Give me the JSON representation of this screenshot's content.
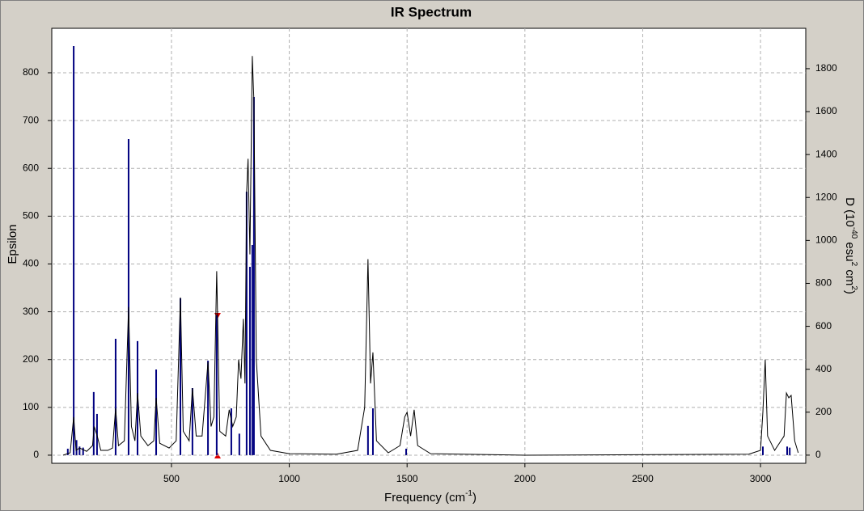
{
  "chart_data": {
    "type": "line",
    "title": "IR Spectrum",
    "xlabel": [
      "Frequency (cm",
      "-1",
      ")"
    ],
    "ylabel": "Epsilon",
    "y2label": [
      "D (10",
      "-40",
      " esu",
      "2",
      " cm",
      "2",
      ")"
    ],
    "xlim": [
      -8,
      3192
    ],
    "xticks": [
      500,
      1000,
      1500,
      2000,
      2500,
      3000
    ],
    "ylim": [
      -17,
      893
    ],
    "yticks": [
      0,
      100,
      200,
      300,
      400,
      500,
      600,
      700,
      800
    ],
    "y2lim": [
      -38,
      1988
    ],
    "y2ticks": [
      0,
      200,
      400,
      600,
      800,
      1000,
      1200,
      1400,
      1600,
      1800
    ],
    "grid": true,
    "series": [
      {
        "type": "line",
        "color": "#000000",
        "x": [
          40,
          70,
          85,
          95,
          110,
          140,
          165,
          172,
          185,
          200,
          230,
          250,
          263,
          275,
          300,
          318,
          330,
          345,
          356,
          370,
          400,
          425,
          435,
          450,
          490,
          520,
          538,
          550,
          575,
          589,
          605,
          630,
          655,
          668,
          680,
          692,
          705,
          730,
          745,
          760,
          775,
          785,
          795,
          805,
          812,
          819,
          825,
          833,
          843,
          850,
          860,
          880,
          920,
          1000,
          1200,
          1290,
          1320,
          1334,
          1345,
          1355,
          1370,
          1420,
          1470,
          1490,
          1500,
          1515,
          1530,
          1545,
          1600,
          2000,
          2950,
          3000,
          3010,
          3020,
          3030,
          3060,
          3100,
          3110,
          3120,
          3130,
          3145,
          3160
        ],
        "values": [
          0,
          5,
          80,
          10,
          15,
          8,
          20,
          60,
          40,
          10,
          10,
          15,
          98,
          20,
          30,
          310,
          60,
          30,
          130,
          40,
          20,
          30,
          120,
          25,
          15,
          30,
          330,
          50,
          30,
          140,
          40,
          40,
          195,
          60,
          80,
          385,
          50,
          40,
          95,
          60,
          80,
          200,
          160,
          285,
          150,
          550,
          620,
          420,
          835,
          740,
          200,
          40,
          10,
          3,
          2,
          10,
          100,
          410,
          150,
          215,
          30,
          5,
          20,
          80,
          90,
          40,
          95,
          20,
          3,
          0,
          2,
          10,
          90,
          200,
          40,
          10,
          40,
          130,
          120,
          125,
          30,
          5
        ]
      },
      {
        "type": "stick",
        "color": "#000080",
        "axis": "y2",
        "x": [
          60,
          85,
          97,
          110,
          125,
          170,
          184,
          263,
          318,
          356,
          435,
          538,
          589,
          655,
          692,
          754,
          788,
          819,
          833,
          843,
          850,
          1334,
          1355,
          1496,
          3010,
          3113,
          3124
        ],
        "values": [
          30,
          1905,
          70,
          40,
          35,
          294,
          192,
          542,
          1472,
          531,
          399,
          730,
          312,
          440,
          651,
          218,
          100,
          1227,
          877,
          979,
          1668,
          136,
          218,
          30,
          40,
          40,
          35
        ]
      }
    ]
  }
}
